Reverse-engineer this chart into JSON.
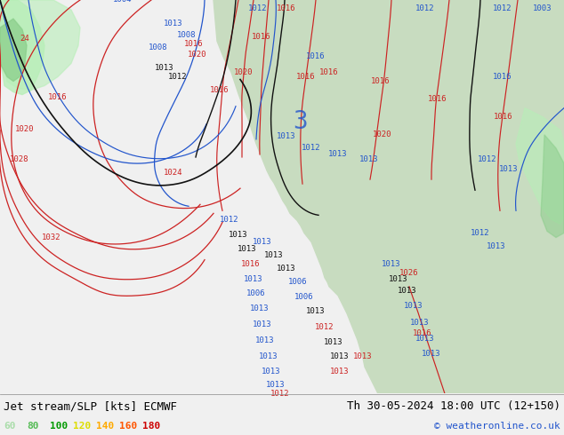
{
  "title_left": "Jet stream/SLP [kts] ECMWF",
  "title_right": "Th 30-05-2024 18:00 UTC (12+150)",
  "copyright": "© weatheronline.co.uk",
  "legend_values": [
    60,
    80,
    100,
    120,
    140,
    160,
    180
  ],
  "legend_colors": [
    "#aaddaa",
    "#55bb55",
    "#009900",
    "#dddd00",
    "#ffaa00",
    "#ff5500",
    "#cc0000"
  ],
  "bg_color": "#f0f0f0",
  "ocean_color": "#e8e8ee",
  "land_color": "#c8dcc0",
  "land_color2": "#d8ead0",
  "mountain_color": "#b8b8a8",
  "jet_green_light": "#b8eeb8",
  "jet_green_med": "#88cc88",
  "jet_green_dark": "#44aa44",
  "isobar_red": "#cc2222",
  "isobar_blue": "#2255cc",
  "isobar_black": "#111111",
  "font_family": "monospace",
  "bottom_bar_color": "#f0f0f0",
  "label_fontsize": 6.5,
  "title_fontsize": 9,
  "fig_width": 6.34,
  "fig_height": 4.9,
  "dpi": 100
}
